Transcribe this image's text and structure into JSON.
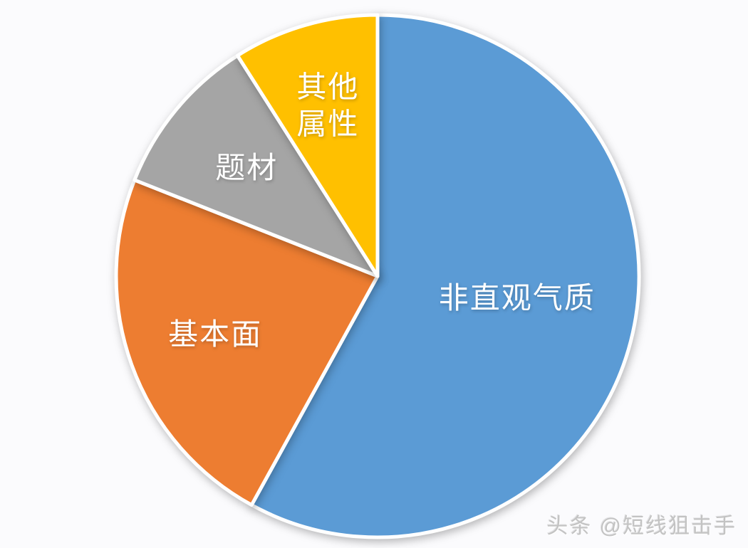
{
  "chart_data": {
    "type": "pie",
    "categories": [
      "非直观气质",
      "基本面",
      "题材",
      "其他属性"
    ],
    "values": [
      58,
      23,
      10,
      9
    ],
    "slices": [
      {
        "label": "非直观气质",
        "lines": [
          "非直观气质"
        ],
        "value": 58,
        "color": "#5B9BD5",
        "label_r": 0.54,
        "label_angle_deg": 99
      },
      {
        "label": "基本面",
        "lines": [
          "基本面"
        ],
        "value": 23,
        "color": "#ED7D31",
        "label_r": 0.66
      },
      {
        "label": "题材",
        "lines": [
          "题材"
        ],
        "value": 10,
        "color": "#A5A5A5",
        "label_r": 0.65
      },
      {
        "label": "其他属性",
        "lines": [
          "其他",
          "属性"
        ],
        "value": 9,
        "color": "#FFC000",
        "label_r": 0.68
      }
    ],
    "start_angle_deg": 0,
    "direction": "clockwise",
    "slice_border_color": "#FFFFFF",
    "label_text_color": "#FFFFFF",
    "legend": "none",
    "background_color": "#FBFBFD",
    "title": ""
  },
  "watermark": {
    "text": "头条 @短线狙击手",
    "color": "#C3C3C3"
  }
}
